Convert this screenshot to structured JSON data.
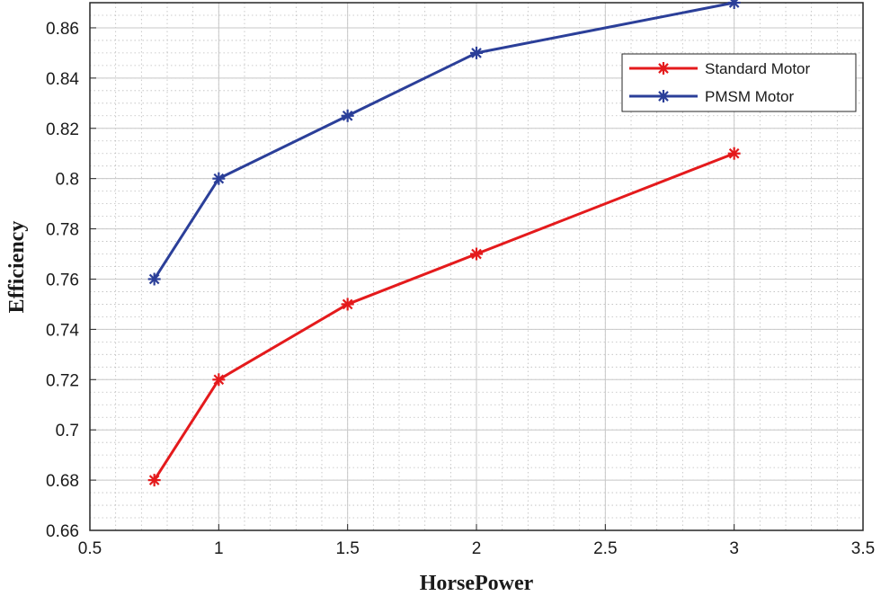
{
  "chart_data": {
    "type": "line",
    "title": "",
    "xlabel": "HorsePower",
    "ylabel": "Efficiency",
    "xlim": [
      0.5,
      3.5
    ],
    "ylim": [
      0.66,
      0.87
    ],
    "x_ticks": [
      "0.5",
      "1",
      "1.5",
      "2",
      "2.5",
      "3",
      "3.5"
    ],
    "y_ticks": [
      "0.66",
      "0.68",
      "0.7",
      "0.72",
      "0.74",
      "0.76",
      "0.78",
      "0.8",
      "0.82",
      "0.84",
      "0.86"
    ],
    "grid": true,
    "minor_grid": true,
    "legend_position": "top-right",
    "marker": "asterisk",
    "series": [
      {
        "name": "Standard Motor",
        "color": "#e41a1c",
        "x": [
          0.75,
          1,
          1.5,
          2,
          3
        ],
        "y": [
          0.68,
          0.72,
          0.75,
          0.77,
          0.81
        ]
      },
      {
        "name": "PMSM Motor",
        "color": "#2b3f99",
        "x": [
          0.75,
          1,
          1.5,
          2,
          3
        ],
        "y": [
          0.76,
          0.8,
          0.825,
          0.85,
          0.87
        ]
      }
    ]
  }
}
